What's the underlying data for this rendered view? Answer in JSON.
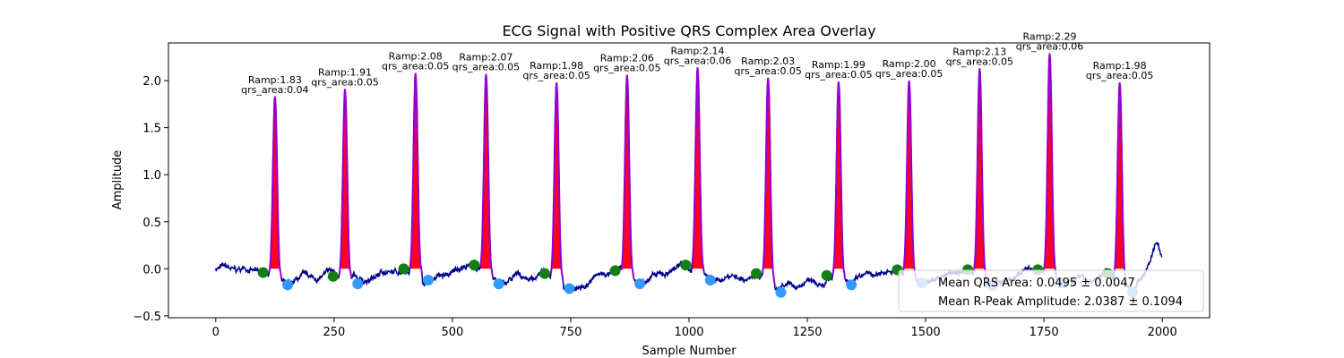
{
  "chart_data": {
    "type": "line",
    "title": "ECG Signal with Positive QRS Complex Area Overlay",
    "xlabel": "Sample Number",
    "ylabel": "Amplitude",
    "xlim": [
      -100,
      2100
    ],
    "ylim": [
      -0.52,
      2.4
    ],
    "xticks": [
      0,
      250,
      500,
      750,
      1000,
      1250,
      1500,
      1750,
      2000
    ],
    "yticks": [
      -0.5,
      0.0,
      0.5,
      1.0,
      1.5,
      2.0
    ],
    "ytick_labels": [
      "−0.5",
      "0.0",
      "0.5",
      "1.0",
      "1.5",
      "2.0"
    ],
    "grid": false,
    "series_colors": {
      "signal": "#00008b",
      "qrs_fill": "#ff0022",
      "qrs_outline": "#9400d3",
      "onset_marker": "#137f13",
      "offset_marker": "#3399ff"
    },
    "beats": [
      {
        "r_x": 125,
        "r_amp": 1.83,
        "qrs_area": 0.04,
        "ann": [
          "Ramp:1.83",
          "qrs_area:0.04"
        ],
        "onset": [
          100,
          -0.04
        ],
        "offset": [
          152,
          -0.17
        ]
      },
      {
        "r_x": 273,
        "r_amp": 1.91,
        "qrs_area": 0.05,
        "ann": [
          "Ramp:1.91",
          "qrs_area:0.05"
        ],
        "onset": [
          248,
          -0.08
        ],
        "offset": [
          300,
          -0.16
        ]
      },
      {
        "r_x": 422,
        "r_amp": 2.08,
        "qrs_area": 0.05,
        "ann": [
          "Ramp:2.08",
          "qrs_area:0.05"
        ],
        "onset": [
          397,
          0.0
        ],
        "offset": [
          449,
          -0.12
        ]
      },
      {
        "r_x": 571,
        "r_amp": 2.07,
        "qrs_area": 0.05,
        "ann": [
          "Ramp:2.07",
          "qrs_area:0.05"
        ],
        "onset": [
          546,
          0.04
        ],
        "offset": [
          598,
          -0.16
        ]
      },
      {
        "r_x": 720,
        "r_amp": 1.98,
        "qrs_area": 0.05,
        "ann": [
          "Ramp:1.98",
          "qrs_area:0.05"
        ],
        "onset": [
          695,
          -0.05
        ],
        "offset": [
          747,
          -0.21
        ]
      },
      {
        "r_x": 869,
        "r_amp": 2.06,
        "qrs_area": 0.05,
        "ann": [
          "Ramp:2.06",
          "qrs_area:0.05"
        ],
        "onset": [
          844,
          -0.02
        ],
        "offset": [
          896,
          -0.16
        ]
      },
      {
        "r_x": 1018,
        "r_amp": 2.14,
        "qrs_area": 0.06,
        "ann": [
          "Ramp:2.14",
          "qrs_area:0.06"
        ],
        "onset": [
          993,
          0.04
        ],
        "offset": [
          1045,
          -0.12
        ]
      },
      {
        "r_x": 1167,
        "r_amp": 2.03,
        "qrs_area": 0.05,
        "ann": [
          "Ramp:2.03",
          "qrs_area:0.05"
        ],
        "onset": [
          1142,
          -0.05
        ],
        "offset": [
          1194,
          -0.25
        ]
      },
      {
        "r_x": 1316,
        "r_amp": 1.99,
        "qrs_area": 0.05,
        "ann": [
          "Ramp:1.99",
          "qrs_area:0.05"
        ],
        "onset": [
          1291,
          -0.07
        ],
        "offset": [
          1343,
          -0.17
        ]
      },
      {
        "r_x": 1465,
        "r_amp": 2.0,
        "qrs_area": 0.05,
        "ann": [
          "Ramp:2.00",
          "qrs_area:0.05"
        ],
        "onset": [
          1440,
          -0.01
        ],
        "offset": [
          1492,
          -0.15
        ]
      },
      {
        "r_x": 1614,
        "r_amp": 2.13,
        "qrs_area": 0.05,
        "ann": [
          "Ramp:2.13",
          "qrs_area:0.05"
        ],
        "onset": [
          1589,
          -0.01
        ],
        "offset": [
          1641,
          -0.18
        ]
      },
      {
        "r_x": 1762,
        "r_amp": 2.29,
        "qrs_area": 0.06,
        "ann": [
          "Ramp:2.29",
          "qrs_area:0.06"
        ],
        "onset": [
          1737,
          -0.01
        ],
        "offset": [
          1789,
          -0.15
        ]
      },
      {
        "r_x": 1910,
        "r_amp": 1.98,
        "qrs_area": 0.05,
        "ann": [
          "Ramp:1.98",
          "qrs_area:0.05"
        ],
        "onset": [
          1885,
          -0.05
        ],
        "offset": [
          1937,
          -0.25
        ]
      }
    ],
    "legend": {
      "placement": "lower-right",
      "entries": [
        "Mean QRS Area: 0.0495 ± 0.0047",
        "Mean R-Peak Amplitude: 2.0387 ± 0.1094"
      ]
    }
  }
}
